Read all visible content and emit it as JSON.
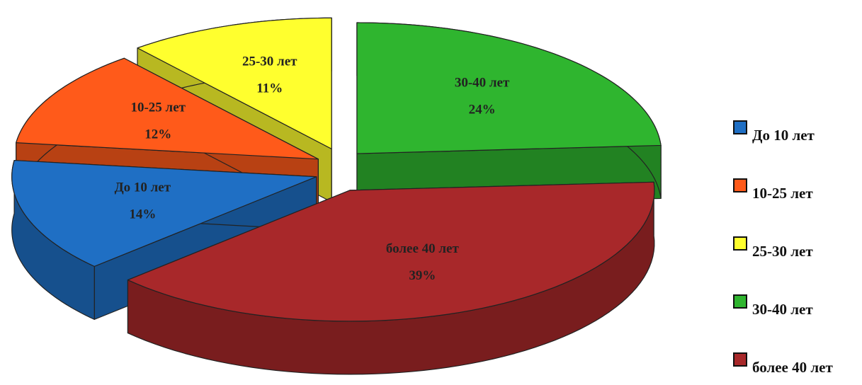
{
  "chart_data": {
    "type": "pie",
    "categories": [
      "До 10 лет",
      "10-25 лет",
      "25-30 лет",
      "30-40 лет",
      "более 40 лет"
    ],
    "values": [
      14,
      12,
      11,
      24,
      39
    ],
    "value_labels": [
      "14%",
      "12%",
      "11%",
      "24%",
      "39%"
    ],
    "colors": [
      "#1f6fc4",
      "#ff5a1a",
      "#ffff2e",
      "#2fb52f",
      "#a8282a"
    ],
    "legend": "right"
  }
}
